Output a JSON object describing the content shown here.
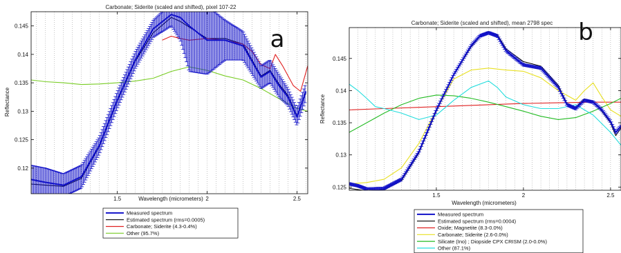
{
  "chart_data": [
    {
      "type": "line",
      "panel_letter": "a",
      "title": "Carbonate; Siderite (scaled and shifted), pixel 107-22",
      "xlabel": "Wavelength (micrometers)",
      "ylabel": "Reflectance",
      "xlim": [
        1.02,
        2.56
      ],
      "ylim": [
        0.1155,
        0.1475
      ],
      "x_ticks": [
        1.5,
        2,
        2.5
      ],
      "y_ticks": [
        0.12,
        0.125,
        0.13,
        0.135,
        0.14,
        0.145
      ],
      "x_tick_labels": [
        "1.5",
        "2",
        "2.5"
      ],
      "y_tick_labels": [
        "0.12",
        "0.125",
        "0.13",
        "0.135",
        "0.14",
        "0.145"
      ],
      "grid": "vertical dotted lines at spectral channels",
      "legend_placement": "below",
      "series": [
        {
          "name": "Measured spectrum",
          "color": "#1010c8",
          "errorbars": true,
          "x": [
            1.02,
            1.1,
            1.2,
            1.3,
            1.4,
            1.5,
            1.6,
            1.7,
            1.8,
            1.85,
            1.9,
            2.0,
            2.1,
            2.2,
            2.3,
            2.35,
            2.4,
            2.45,
            2.5,
            2.55
          ],
          "y": [
            0.118,
            0.1175,
            0.117,
            0.1185,
            0.124,
            0.132,
            0.139,
            0.1445,
            0.147,
            0.1465,
            0.145,
            0.1425,
            0.1425,
            0.1415,
            0.136,
            0.137,
            0.1345,
            0.1325,
            0.129,
            0.1335
          ],
          "err": [
            0.0025,
            0.0025,
            0.002,
            0.002,
            0.0015,
            0.0015,
            0.0015,
            0.0015,
            0.002,
            0.004,
            0.008,
            0.006,
            0.0035,
            0.0025,
            0.002,
            0.002,
            0.002,
            0.0015,
            0.0015,
            0.0015
          ]
        },
        {
          "name": "Estimated spectrum (rms=0.0005)",
          "color": "#000000",
          "x": [
            1.02,
            1.1,
            1.2,
            1.3,
            1.4,
            1.5,
            1.6,
            1.7,
            1.8,
            1.85,
            1.9,
            2.0,
            2.1,
            2.2,
            2.3,
            2.35,
            2.4,
            2.45,
            2.5,
            2.55
          ],
          "y": [
            0.1172,
            0.117,
            0.1168,
            0.1182,
            0.1238,
            0.1318,
            0.1388,
            0.1438,
            0.1465,
            0.1458,
            0.1448,
            0.1428,
            0.1428,
            0.1418,
            0.1362,
            0.1372,
            0.1348,
            0.1328,
            0.1292,
            0.1332
          ]
        },
        {
          "name": "Carbonate; Siderite (4.3-0.4%)",
          "color": "#e02020",
          "x": [
            1.75,
            1.8,
            1.85,
            1.9,
            2.0,
            2.1,
            2.2,
            2.25,
            2.3,
            2.35,
            2.38,
            2.42,
            2.48,
            2.52,
            2.56
          ],
          "y": [
            0.1425,
            0.1432,
            0.1428,
            0.1425,
            0.1428,
            0.1425,
            0.1418,
            0.1405,
            0.1382,
            0.1375,
            0.14,
            0.138,
            0.1345,
            0.1335,
            0.138
          ]
        },
        {
          "name": "Other (95.7%)",
          "color": "#77cc22",
          "x": [
            1.02,
            1.1,
            1.2,
            1.3,
            1.4,
            1.5,
            1.6,
            1.7,
            1.8,
            1.9,
            2.0,
            2.1,
            2.2,
            2.3,
            2.4,
            2.5,
            2.56
          ],
          "y": [
            0.1355,
            0.1352,
            0.135,
            0.1347,
            0.1348,
            0.135,
            0.1353,
            0.1358,
            0.137,
            0.1378,
            0.1372,
            0.1362,
            0.1355,
            0.134,
            0.1322,
            0.1305,
            0.13
          ]
        }
      ]
    },
    {
      "type": "line",
      "panel_letter": "b",
      "title": "Carbonate; Siderite (scaled and shifted), mean 2798 spec",
      "xlabel": "Wavelength (micrometers)",
      "ylabel": "Reflectance",
      "xlim": [
        1.0,
        2.56
      ],
      "ylim": [
        0.1245,
        0.1498
      ],
      "x_ticks": [
        1.5,
        2,
        2.5
      ],
      "y_ticks": [
        0.125,
        0.13,
        0.135,
        0.14,
        0.145
      ],
      "x_tick_labels": [
        "1.5",
        "2",
        "2.5"
      ],
      "y_tick_labels": [
        "0.125",
        "0.13",
        "0.135",
        "0.14",
        "0.145"
      ],
      "grid": "vertical dotted lines at spectral channels",
      "legend_placement": "below",
      "series": [
        {
          "name": "Measured spectrum",
          "color": "#1010c8",
          "errorbars": true,
          "x": [
            1.0,
            1.05,
            1.1,
            1.2,
            1.3,
            1.4,
            1.5,
            1.6,
            1.7,
            1.75,
            1.8,
            1.85,
            1.9,
            2.0,
            2.1,
            2.2,
            2.25,
            2.3,
            2.35,
            2.4,
            2.45,
            2.5,
            2.53,
            2.56
          ],
          "y": [
            0.1255,
            0.1252,
            0.1247,
            0.1248,
            0.1262,
            0.1305,
            0.137,
            0.1425,
            0.147,
            0.1485,
            0.149,
            0.1485,
            0.1462,
            0.144,
            0.1435,
            0.1405,
            0.1378,
            0.1372,
            0.1385,
            0.1382,
            0.137,
            0.1352,
            0.1335,
            0.1345
          ],
          "err": [
            0.0002,
            0.0002,
            0.0002,
            0.0002,
            0.0002,
            0.0002,
            0.0002,
            0.0002,
            0.0002,
            0.0002,
            0.0002,
            0.0002,
            0.0002,
            0.0002,
            0.0002,
            0.0002,
            0.0002,
            0.0002,
            0.0002,
            0.0002,
            0.0002,
            0.0002,
            0.0002,
            0.0002
          ]
        },
        {
          "name": "Estimated spectrum (rms=0.0004)",
          "color": "#000000",
          "x": [
            1.0,
            1.05,
            1.1,
            1.2,
            1.3,
            1.4,
            1.5,
            1.6,
            1.7,
            1.75,
            1.8,
            1.85,
            1.9,
            2.0,
            2.1,
            2.2,
            2.25,
            2.3,
            2.35,
            2.4,
            2.45,
            2.5,
            2.53,
            2.56
          ],
          "y": [
            0.1248,
            0.1246,
            0.1244,
            0.1246,
            0.126,
            0.1303,
            0.1368,
            0.1424,
            0.1468,
            0.1484,
            0.1492,
            0.1487,
            0.1465,
            0.1445,
            0.1438,
            0.1408,
            0.138,
            0.1374,
            0.1387,
            0.1383,
            0.1368,
            0.135,
            0.133,
            0.1342
          ]
        },
        {
          "name": "Oxide; Magnetite (8.3-0.0%)",
          "color": "#e02020",
          "x": [
            1.0,
            1.2,
            1.4,
            1.6,
            1.8,
            2.0,
            2.2,
            2.4,
            2.56
          ],
          "y": [
            0.137,
            0.1372,
            0.1374,
            0.1376,
            0.1378,
            0.138,
            0.1381,
            0.1382,
            0.1382
          ]
        },
        {
          "name": "Carbonate; Siderite (2.6-0.0%)",
          "color": "#e8e020",
          "x": [
            1.0,
            1.1,
            1.2,
            1.3,
            1.4,
            1.5,
            1.6,
            1.7,
            1.8,
            1.9,
            2.0,
            2.1,
            2.2,
            2.3,
            2.35,
            2.4,
            2.45,
            2.5,
            2.56
          ],
          "y": [
            0.1255,
            0.1257,
            0.1262,
            0.128,
            0.1318,
            0.137,
            0.1418,
            0.1432,
            0.1435,
            0.1432,
            0.143,
            0.142,
            0.14,
            0.1385,
            0.14,
            0.1412,
            0.139,
            0.137,
            0.136
          ]
        },
        {
          "name": "Silicate (Ino) ; Diopside CPX CRISM (2.0-0.0%)",
          "color": "#22bb22",
          "x": [
            1.0,
            1.1,
            1.2,
            1.3,
            1.4,
            1.5,
            1.6,
            1.7,
            1.8,
            1.9,
            2.0,
            2.1,
            2.2,
            2.3,
            2.4,
            2.5,
            2.56
          ],
          "y": [
            0.1335,
            0.135,
            0.1365,
            0.1378,
            0.1388,
            0.1393,
            0.1392,
            0.1388,
            0.1382,
            0.1375,
            0.1368,
            0.136,
            0.1355,
            0.1358,
            0.1368,
            0.138,
            0.1388
          ]
        },
        {
          "name": "Other (87.1%)",
          "color": "#22dddd",
          "x": [
            1.0,
            1.05,
            1.1,
            1.15,
            1.2,
            1.3,
            1.4,
            1.5,
            1.6,
            1.7,
            1.8,
            1.85,
            1.9,
            2.0,
            2.1,
            2.2,
            2.3,
            2.4,
            2.5,
            2.56
          ],
          "y": [
            0.141,
            0.14,
            0.1388,
            0.1375,
            0.1372,
            0.1365,
            0.1355,
            0.1362,
            0.1385,
            0.1405,
            0.1415,
            0.1405,
            0.139,
            0.1378,
            0.1372,
            0.1372,
            0.1378,
            0.1362,
            0.1335,
            0.1315
          ]
        }
      ]
    }
  ]
}
